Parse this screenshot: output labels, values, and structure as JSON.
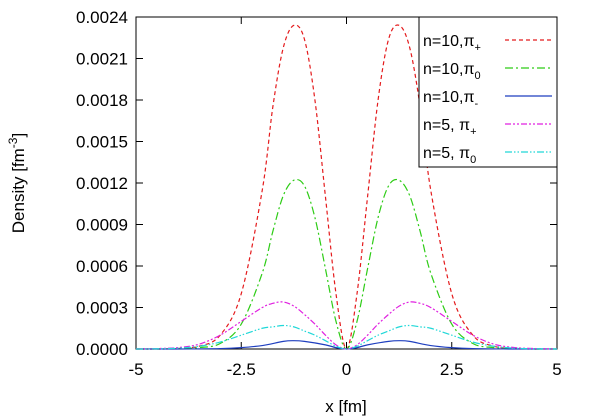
{
  "chart_data": {
    "type": "line",
    "xlabel": "x [fm]",
    "ylabel": {
      "main": "Density [fm",
      "sup": "-3",
      "tail": "]"
    },
    "xlim": [
      -5,
      5
    ],
    "ylim": [
      0,
      0.0024
    ],
    "x_ticks": [
      -5,
      -2.5,
      0,
      2.5,
      5
    ],
    "x_tick_labels": [
      "-5",
      "-2.5",
      "0",
      "2.5",
      "5"
    ],
    "y_ticks": [
      0,
      0.0003,
      0.0006,
      0.0009,
      0.0012,
      0.0015,
      0.0018,
      0.0021,
      0.0024
    ],
    "y_tick_labels": [
      "0.0000",
      "0.0003",
      "0.0006",
      "0.0009",
      "0.0012",
      "0.0015",
      "0.0018",
      "0.0021",
      "0.0024"
    ],
    "grid": false,
    "legend_position": "top-right",
    "series": [
      {
        "name": "n=10,π+",
        "name_base": "n=10,π",
        "name_sub": "+",
        "color": "#e41a1c",
        "dash": "4,3",
        "x": [
          -5,
          -4.5,
          -4,
          -3.5,
          -3,
          -2.5,
          -2,
          -1.75,
          -1.5,
          -1.25,
          -1,
          -0.75,
          -0.5,
          -0.25,
          0,
          0.25,
          0.5,
          0.75,
          1,
          1.25,
          1.5,
          1.75,
          2,
          2.5,
          3,
          3.5,
          4,
          4.5,
          5
        ],
        "y": [
          0,
          0,
          4e-06,
          2e-05,
          0.0001,
          0.0004,
          0.00115,
          0.00175,
          0.00218,
          0.00234,
          0.00224,
          0.0018,
          0.0011,
          0.0004,
          0,
          0.0004,
          0.0011,
          0.0018,
          0.00224,
          0.00234,
          0.00218,
          0.00175,
          0.00115,
          0.0004,
          0.0001,
          2e-05,
          4e-06,
          0,
          0
        ]
      },
      {
        "name": "n=10,π0",
        "name_base": "n=10,π",
        "name_sub": "0",
        "color": "#2ecc16",
        "dash": "8,3,2,3",
        "x": [
          -5,
          -4.5,
          -4,
          -3.5,
          -3,
          -2.5,
          -2,
          -1.75,
          -1.5,
          -1.25,
          -1,
          -0.75,
          -0.5,
          -0.25,
          0,
          0.25,
          0.5,
          0.75,
          1,
          1.25,
          1.5,
          1.75,
          2,
          2.5,
          3,
          3.5,
          4,
          4.5,
          5
        ],
        "y": [
          0,
          0,
          2e-06,
          1e-05,
          4e-05,
          0.00018,
          0.00055,
          0.00085,
          0.00111,
          0.00122,
          0.00118,
          0.00095,
          0.00058,
          0.0002,
          0,
          0.0002,
          0.00058,
          0.00095,
          0.00118,
          0.00122,
          0.00111,
          0.00085,
          0.00055,
          0.00018,
          4e-05,
          1e-05,
          2e-06,
          0,
          0
        ]
      },
      {
        "name": "n=10,π-",
        "name_base": "n=10,π",
        "name_sub": "-",
        "color": "#1f3fbf",
        "dash": "",
        "x": [
          -5,
          -4,
          -3,
          -2.5,
          -2,
          -1.5,
          -1.25,
          -1,
          -0.5,
          -0.25,
          0,
          0.25,
          0.5,
          1,
          1.25,
          1.5,
          2,
          2.5,
          3,
          4,
          5
        ],
        "y": [
          0,
          0,
          3e-06,
          1e-05,
          2.5e-05,
          5.5e-05,
          6e-05,
          5.5e-05,
          3e-05,
          1e-05,
          0,
          1e-05,
          3e-05,
          5.5e-05,
          6e-05,
          5.5e-05,
          2.5e-05,
          1e-05,
          3e-06,
          0,
          0
        ]
      },
      {
        "name": "n=5, π+",
        "name_base": "n=5, π",
        "name_sub": "+",
        "color": "#e020e0",
        "dash": "6,2,2,2,2,2",
        "x": [
          -5,
          -4.5,
          -4,
          -3.5,
          -3,
          -2.5,
          -2,
          -1.75,
          -1.5,
          -1.25,
          -1,
          -0.75,
          -0.5,
          -0.25,
          0,
          0.25,
          0.5,
          0.75,
          1,
          1.25,
          1.5,
          1.75,
          2,
          2.5,
          3,
          3.5,
          4,
          4.5,
          5
        ],
        "y": [
          0,
          3e-06,
          1e-05,
          3.5e-05,
          0.0001,
          0.0002,
          0.0003,
          0.00033,
          0.00034,
          0.00031,
          0.00025,
          0.00018,
          0.0001,
          3e-05,
          0,
          3e-05,
          0.0001,
          0.00018,
          0.00025,
          0.00031,
          0.00034,
          0.00033,
          0.0003,
          0.0002,
          0.0001,
          3.5e-05,
          1e-05,
          3e-06,
          0
        ]
      },
      {
        "name": "n=5, π0",
        "name_base": "n=5, π",
        "name_sub": "0",
        "color": "#20d8d8",
        "dash": "7,2,1.5,2,1.5,2",
        "x": [
          -5,
          -4.5,
          -4,
          -3.5,
          -3,
          -2.5,
          -2,
          -1.75,
          -1.5,
          -1.25,
          -1,
          -0.75,
          -0.5,
          -0.25,
          0,
          0.25,
          0.5,
          0.75,
          1,
          1.25,
          1.5,
          1.75,
          2,
          2.5,
          3,
          3.5,
          4,
          4.5,
          5
        ],
        "y": [
          0,
          2e-06,
          6e-06,
          2e-05,
          5e-05,
          0.0001,
          0.00015,
          0.00016,
          0.00017,
          0.00016,
          0.00013,
          0.0001,
          6e-05,
          2e-05,
          0,
          2e-05,
          6e-05,
          0.0001,
          0.00013,
          0.00016,
          0.00017,
          0.00016,
          0.00015,
          0.0001,
          5e-05,
          2e-05,
          6e-06,
          2e-06,
          0
        ]
      }
    ]
  }
}
